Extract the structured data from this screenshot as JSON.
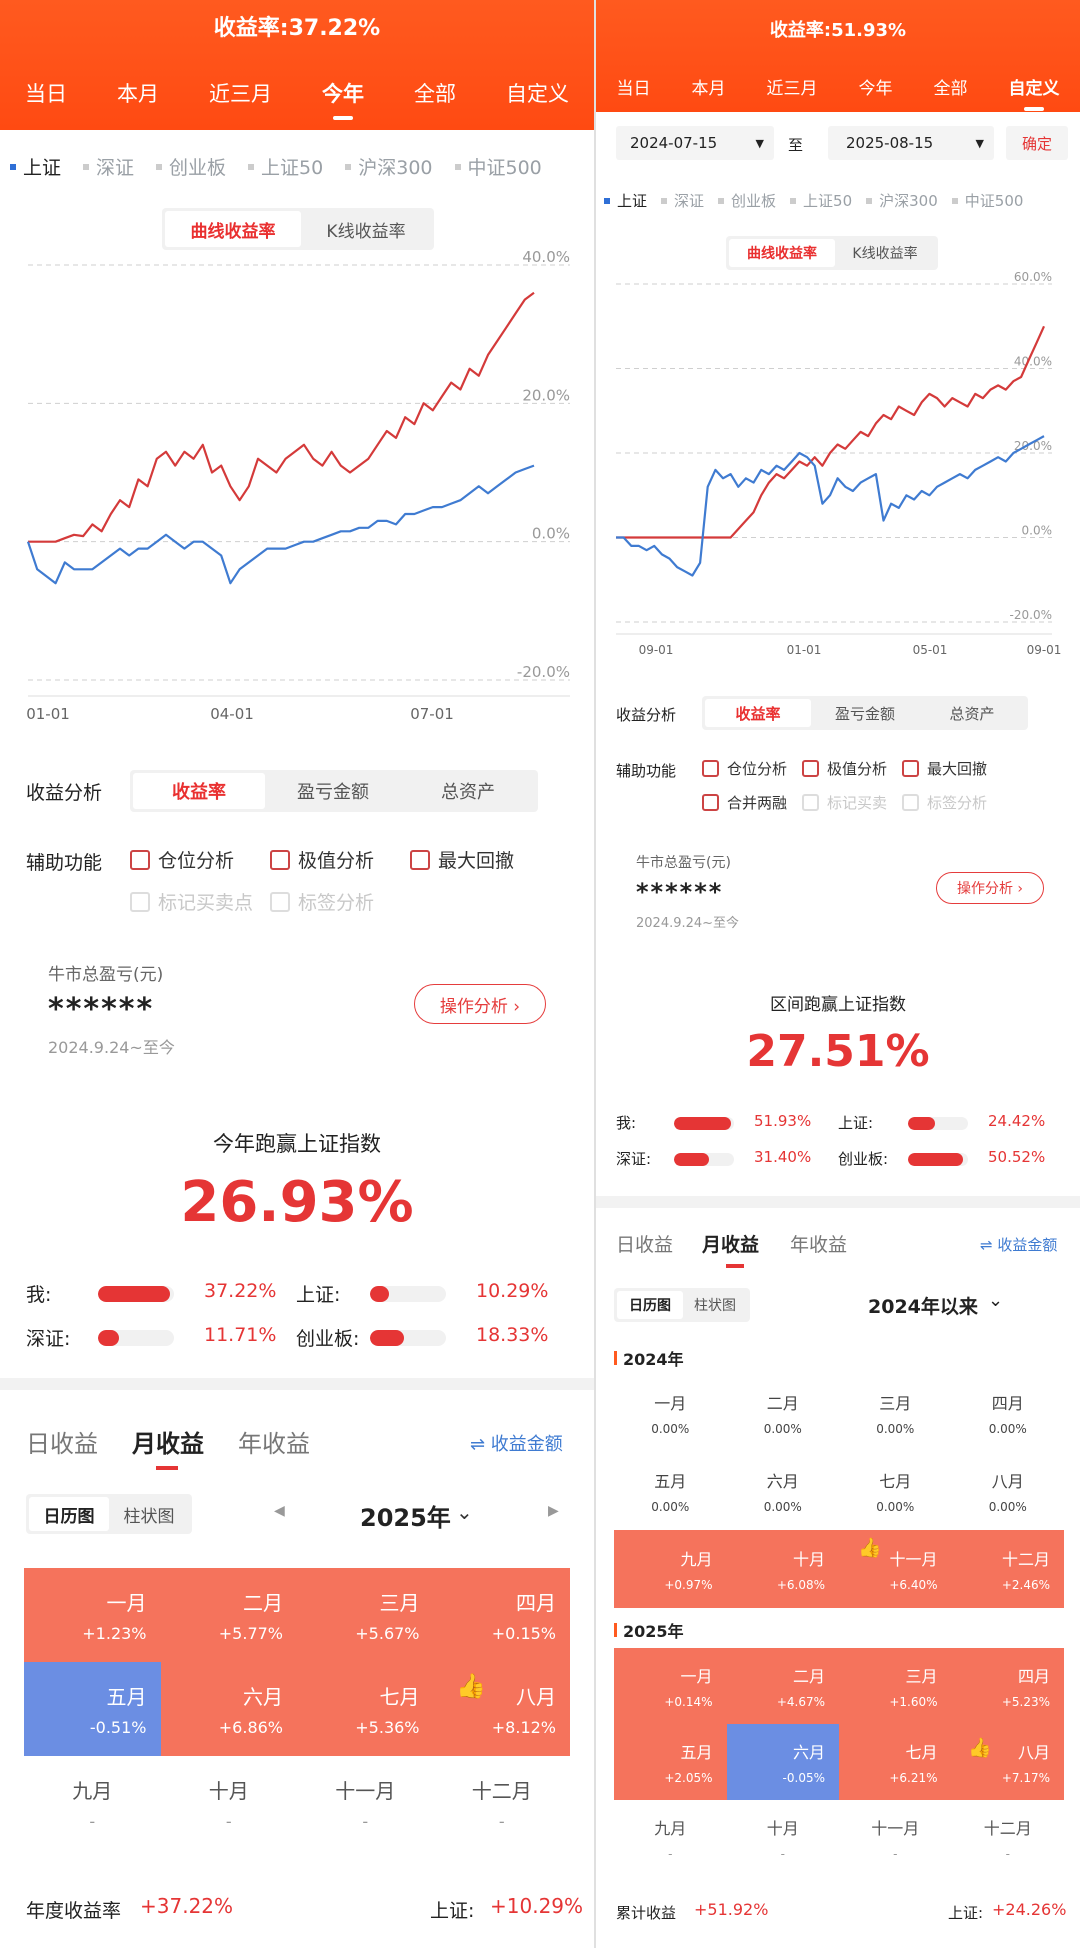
{
  "left": {
    "header": {
      "title": "收益率:37.22%",
      "tabs": [
        "当日",
        "本月",
        "近三月",
        "今年",
        "全部",
        "自定义"
      ],
      "active_tab": 3
    },
    "indices": [
      "上证",
      "深证",
      "创业板",
      "上证50",
      "沪深300",
      "中证500"
    ],
    "chart_toggle": [
      "曲线收益率",
      "K线收益率"
    ],
    "chart_data": {
      "type": "line",
      "x_ticks": [
        "01-01",
        "04-01",
        "07-01"
      ],
      "y_ticks": [
        "40.0%",
        "20.0%",
        "0.0%",
        "-20.0%"
      ],
      "ylim": [
        -20,
        40
      ],
      "series": [
        {
          "color": "#d43a3a",
          "values": [
            0,
            0,
            0,
            0,
            0.5,
            1,
            0.8,
            2.5,
            1.5,
            4,
            6,
            5,
            9,
            8,
            12,
            13,
            11,
            13,
            12,
            14,
            10,
            11,
            8,
            6,
            8,
            12,
            11,
            10,
            12,
            13,
            14,
            12,
            11,
            13,
            11,
            10,
            11,
            12,
            14,
            16,
            15,
            18,
            17,
            20,
            19,
            21,
            23,
            22,
            25,
            24,
            27,
            29,
            31,
            33,
            35,
            36
          ]
        },
        {
          "color": "#3f7bd1",
          "values": [
            0,
            -4,
            -5,
            -6,
            -3,
            -4,
            -4,
            -4,
            -3,
            -2,
            -1,
            -2,
            -1,
            -1,
            0,
            1,
            0,
            -1,
            0,
            0,
            -1,
            -2,
            -6,
            -4,
            -3,
            -2,
            -1,
            -1,
            -1,
            -0.5,
            0,
            0,
            0.5,
            1,
            1.5,
            1.5,
            2,
            2,
            3,
            3,
            2.5,
            4,
            4,
            4.5,
            5,
            5,
            5.5,
            6,
            7,
            8,
            7,
            8,
            9,
            10,
            10.5,
            11
          ]
        }
      ]
    },
    "analysis": {
      "label": "收益分析",
      "tabs": [
        "收益率",
        "盈亏金额",
        "总资产"
      ]
    },
    "aux": {
      "label": "辅助功能",
      "on": [
        "仓位分析",
        "极值分析",
        "最大回撤"
      ],
      "off": [
        "标记买卖点",
        "标签分析"
      ]
    },
    "bull": {
      "label": "牛市总盈亏(元)",
      "value": "******",
      "date": "2024.9.24~至今",
      "btn": "操作分析 ›"
    },
    "beat": {
      "label": "今年跑赢上证指数",
      "value": "26.93%"
    },
    "compare": [
      {
        "name": "我:",
        "pct": "37.22%",
        "f": 0.95
      },
      {
        "name": "上证:",
        "pct": "10.29%",
        "f": 0.25
      },
      {
        "name": "深证:",
        "pct": "11.71%",
        "f": 0.28
      },
      {
        "name": "创业板:",
        "pct": "18.33%",
        "f": 0.45
      }
    ],
    "period_tabs": [
      "日收益",
      "月收益",
      "年收益"
    ],
    "switch": "⇌ 收益金额",
    "views": [
      "日历图",
      "柱状图"
    ],
    "year": "2025年",
    "months": [
      {
        "m": "一月",
        "p": "+1.23%",
        "t": "pos"
      },
      {
        "m": "二月",
        "p": "+5.77%",
        "t": "pos"
      },
      {
        "m": "三月",
        "p": "+5.67%",
        "t": "pos"
      },
      {
        "m": "四月",
        "p": "+0.15%",
        "t": "pos"
      },
      {
        "m": "五月",
        "p": "-0.51%",
        "t": "neg"
      },
      {
        "m": "六月",
        "p": "+6.86%",
        "t": "pos"
      },
      {
        "m": "七月",
        "p": "+5.36%",
        "t": "pos"
      },
      {
        "m": "八月",
        "p": "+8.12%",
        "t": "pos"
      },
      {
        "m": "九月",
        "p": "-",
        "t": "blank"
      },
      {
        "m": "十月",
        "p": "-",
        "t": "blank"
      },
      {
        "m": "十一月",
        "p": "-",
        "t": "blank"
      },
      {
        "m": "十二月",
        "p": "-",
        "t": "blank"
      }
    ],
    "footer": {
      "label": "年度收益率",
      "value": "+37.22%",
      "idx_label": "上证:",
      "idx_value": "+10.29%"
    }
  },
  "right": {
    "header": {
      "title": "收益率:51.93%",
      "tabs": [
        "当日",
        "本月",
        "近三月",
        "今年",
        "全部",
        "自定义"
      ],
      "active_tab": 5
    },
    "date_from": "2024-07-15",
    "date_to": "2025-08-15",
    "to_label": "至",
    "confirm": "确定",
    "indices": [
      "上证",
      "深证",
      "创业板",
      "上证50",
      "沪深300",
      "中证500"
    ],
    "chart_toggle": [
      "曲线收益率",
      "K线收益率"
    ],
    "chart_data": {
      "type": "line",
      "x_ticks": [
        "09-01",
        "01-01",
        "05-01",
        "09-01"
      ],
      "y_ticks": [
        "60.0%",
        "40.0%",
        "20.0%",
        "0.0%",
        "-20.0%"
      ],
      "ylim": [
        -20,
        60
      ],
      "series": [
        {
          "color": "#d43a3a",
          "values": [
            0,
            0,
            0,
            0,
            0,
            0,
            0,
            0,
            0,
            0,
            0,
            0,
            0,
            0,
            0,
            0,
            2,
            4,
            6,
            10,
            13,
            15,
            14,
            16,
            18,
            17,
            19,
            17,
            20,
            22,
            21,
            23,
            25,
            24,
            27,
            29,
            28,
            31,
            30,
            29,
            32,
            34,
            33,
            31,
            33,
            32,
            31,
            34,
            33,
            35,
            36,
            35,
            37,
            38,
            42,
            46,
            50
          ]
        },
        {
          "color": "#3f7bd1",
          "values": [
            0,
            0,
            -2,
            -2,
            -3,
            -2,
            -4,
            -5,
            -7,
            -8,
            -9,
            -6,
            12,
            16,
            14,
            15,
            12,
            14,
            13,
            16,
            15,
            17,
            16,
            18,
            20,
            19,
            17,
            8,
            10,
            14,
            12,
            11,
            13,
            14,
            15,
            4,
            8,
            7,
            10,
            9,
            11,
            10,
            12,
            13,
            14,
            15,
            14,
            16,
            17,
            18,
            19,
            18,
            20,
            21,
            22,
            23,
            24
          ]
        }
      ]
    },
    "analysis": {
      "label": "收益分析",
      "tabs": [
        "收益率",
        "盈亏金额",
        "总资产"
      ]
    },
    "aux": {
      "label": "辅助功能",
      "on": [
        "仓位分析",
        "极值分析",
        "最大回撤",
        "合并两融"
      ],
      "off": [
        "标记买卖",
        "标签分析"
      ]
    },
    "bull": {
      "label": "牛市总盈亏(元)",
      "value": "******",
      "date": "2024.9.24~至今",
      "btn": "操作分析 ›"
    },
    "beat": {
      "label": "区间跑赢上证指数",
      "value": "27.51%"
    },
    "compare": [
      {
        "name": "我:",
        "pct": "51.93%",
        "f": 0.95
      },
      {
        "name": "上证:",
        "pct": "24.42%",
        "f": 0.45
      },
      {
        "name": "深证:",
        "pct": "31.40%",
        "f": 0.58
      },
      {
        "name": "创业板:",
        "pct": "50.52%",
        "f": 0.92
      }
    ],
    "period_tabs": [
      "日收益",
      "月收益",
      "年收益"
    ],
    "switch": "⇌ 收益金额",
    "views": [
      "日历图",
      "柱状图"
    ],
    "range": "2024年以来",
    "y2024": "2024年",
    "months2024": [
      {
        "m": "一月",
        "p": "0.00%",
        "t": "zero"
      },
      {
        "m": "二月",
        "p": "0.00%",
        "t": "zero"
      },
      {
        "m": "三月",
        "p": "0.00%",
        "t": "zero"
      },
      {
        "m": "四月",
        "p": "0.00%",
        "t": "zero"
      },
      {
        "m": "五月",
        "p": "0.00%",
        "t": "zero"
      },
      {
        "m": "六月",
        "p": "0.00%",
        "t": "zero"
      },
      {
        "m": "七月",
        "p": "0.00%",
        "t": "zero"
      },
      {
        "m": "八月",
        "p": "0.00%",
        "t": "zero"
      },
      {
        "m": "九月",
        "p": "+0.97%",
        "t": "pos"
      },
      {
        "m": "十月",
        "p": "+6.08%",
        "t": "pos"
      },
      {
        "m": "十一月",
        "p": "+6.40%",
        "t": "pos"
      },
      {
        "m": "十二月",
        "p": "+2.46%",
        "t": "pos"
      }
    ],
    "y2025": "2025年",
    "months2025": [
      {
        "m": "一月",
        "p": "+0.14%",
        "t": "pos"
      },
      {
        "m": "二月",
        "p": "+4.67%",
        "t": "pos"
      },
      {
        "m": "三月",
        "p": "+1.60%",
        "t": "pos"
      },
      {
        "m": "四月",
        "p": "+5.23%",
        "t": "pos"
      },
      {
        "m": "五月",
        "p": "+2.05%",
        "t": "pos"
      },
      {
        "m": "六月",
        "p": "-0.05%",
        "t": "neg"
      },
      {
        "m": "七月",
        "p": "+6.21%",
        "t": "pos"
      },
      {
        "m": "八月",
        "p": "+7.17%",
        "t": "pos"
      },
      {
        "m": "九月",
        "p": "-",
        "t": "blank"
      },
      {
        "m": "十月",
        "p": "-",
        "t": "blank"
      },
      {
        "m": "十一月",
        "p": "-",
        "t": "blank"
      },
      {
        "m": "十二月",
        "p": "-",
        "t": "blank"
      }
    ],
    "footer": {
      "label": "累计收益",
      "value": "+51.92%",
      "idx_label": "上证:",
      "idx_value": "+24.26%"
    }
  }
}
